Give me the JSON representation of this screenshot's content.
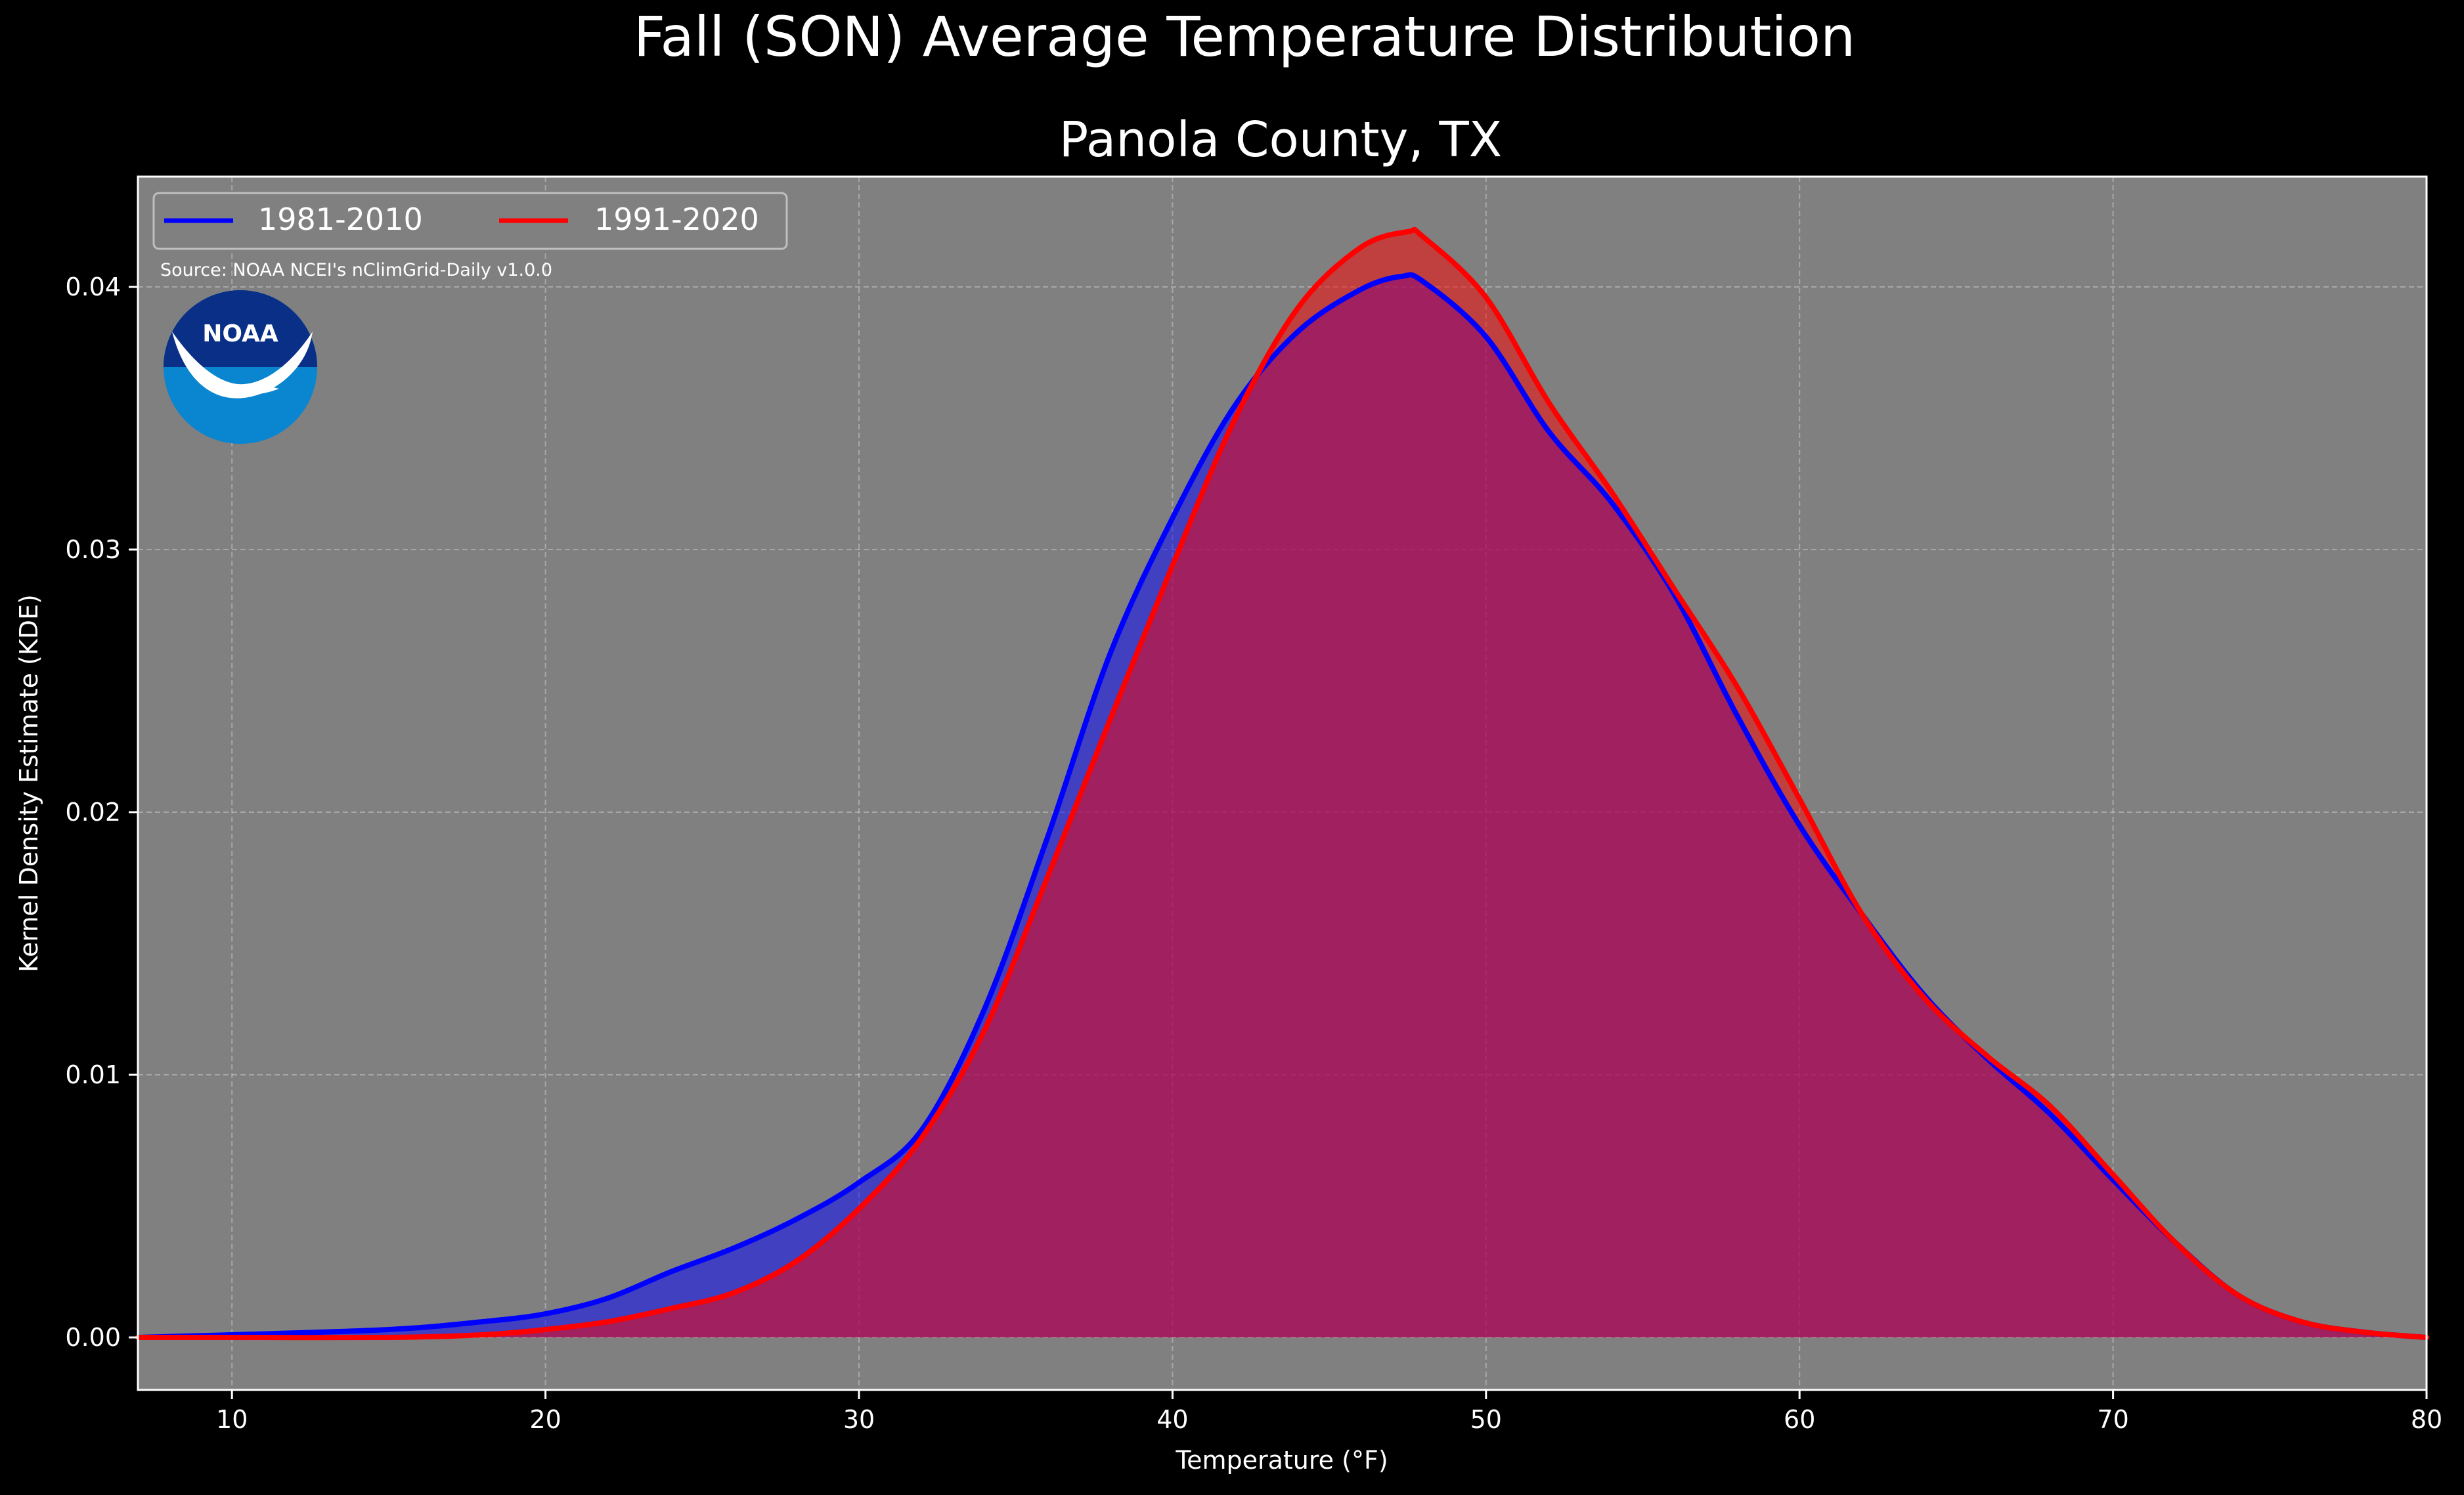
{
  "colors": {
    "page_background": "#000000",
    "plot_background": "#808080",
    "series_1981": "#0000ff",
    "series_1991": "#ff0000",
    "text": "#ffffff",
    "noaa_dark": "#0a2f87",
    "noaa_light": "#0a85cf"
  },
  "logo": {
    "icon": "noaa-logo-icon",
    "text": "NOAA"
  },
  "chart_data": {
    "type": "area",
    "title": "Fall (SON) Average Temperature Distribution",
    "subtitle": "Panola County, TX",
    "xlabel": "Temperature (°F)",
    "ylabel": "Kernel Density Estimate (KDE)",
    "source_note": "Source: NOAA NCEI's nClimGrid-Daily v1.0.0",
    "xlim": [
      7,
      80
    ],
    "ylim": [
      -0.002,
      0.0442
    ],
    "xticks": [
      10,
      20,
      30,
      40,
      50,
      60,
      70,
      80
    ],
    "yticks": [
      0.0,
      0.01,
      0.02,
      0.03,
      0.04
    ],
    "xtick_labels": [
      "10",
      "20",
      "30",
      "40",
      "50",
      "60",
      "70",
      "80"
    ],
    "ytick_labels": [
      "0.00",
      "0.01",
      "0.02",
      "0.03",
      "0.04"
    ],
    "grid": true,
    "legend_placement": "top-left",
    "series": [
      {
        "name": "1981-2010",
        "color": "#0000ff",
        "x": [
          7,
          10,
          15,
          18,
          20,
          22,
          24,
          26,
          28,
          30,
          32,
          34,
          36,
          38,
          40,
          42,
          44,
          46,
          47.3,
          48,
          50,
          52,
          54,
          56,
          58,
          60,
          62,
          64,
          66,
          68,
          70,
          72,
          74,
          76,
          78,
          80
        ],
        "y": [
          0.0,
          0.0001,
          0.0003,
          0.0006,
          0.0009,
          0.0015,
          0.0025,
          0.0034,
          0.0045,
          0.0059,
          0.0079,
          0.0125,
          0.019,
          0.026,
          0.0312,
          0.0355,
          0.0383,
          0.0399,
          0.0404,
          0.0402,
          0.0381,
          0.0345,
          0.0318,
          0.0283,
          0.0237,
          0.0195,
          0.0161,
          0.013,
          0.0106,
          0.0085,
          0.006,
          0.0036,
          0.0016,
          0.0006,
          0.0002,
          0.0
        ]
      },
      {
        "name": "1991-2020",
        "color": "#ff0000",
        "x": [
          7,
          10,
          15,
          18,
          20,
          22,
          24,
          26,
          28,
          30,
          32,
          34,
          36,
          38,
          40,
          42,
          44,
          46,
          47.5,
          48,
          50,
          52,
          54,
          56,
          58,
          60,
          62,
          64,
          66,
          68,
          70,
          72,
          74,
          76,
          78,
          80
        ],
        "y": [
          0.0,
          0.0,
          0.0,
          0.0001,
          0.0003,
          0.0006,
          0.0011,
          0.0017,
          0.0029,
          0.0049,
          0.0076,
          0.0117,
          0.0175,
          0.0235,
          0.0294,
          0.035,
          0.0392,
          0.0415,
          0.0421,
          0.0419,
          0.0396,
          0.0356,
          0.0322,
          0.0285,
          0.0248,
          0.0205,
          0.0161,
          0.0129,
          0.0107,
          0.0088,
          0.0062,
          0.0036,
          0.0016,
          0.0006,
          0.0002,
          0.0
        ]
      }
    ]
  }
}
